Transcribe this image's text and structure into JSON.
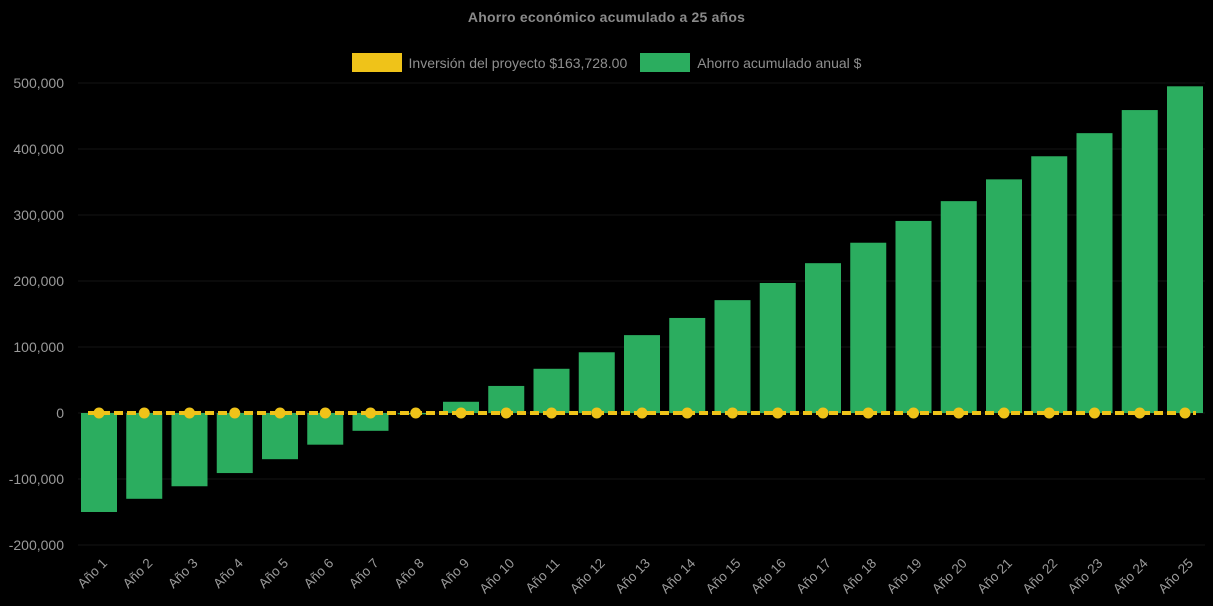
{
  "page": {
    "background": "#000000"
  },
  "chart_data": {
    "type": "bar",
    "title": "Ahorro económico acumulado a 25 años",
    "categories": [
      "Año 1",
      "Año 2",
      "Año 3",
      "Año 4",
      "Año 5",
      "Año 6",
      "Año 7",
      "Año 8",
      "Año 9",
      "Año 10",
      "Año 11",
      "Año 12",
      "Año 13",
      "Año 14",
      "Año 15",
      "Año 16",
      "Año 17",
      "Año 18",
      "Año 19",
      "Año 20",
      "Año 21",
      "Año 22",
      "Año 23",
      "Año 24",
      "Año 25"
    ],
    "series": [
      {
        "name": "Inversión del proyecto $163,728.00",
        "type": "line",
        "line_style": "dashed",
        "marker": "circle",
        "color": "#EFC319",
        "values": [
          0,
          0,
          0,
          0,
          0,
          0,
          0,
          0,
          0,
          0,
          0,
          0,
          0,
          0,
          0,
          0,
          0,
          0,
          0,
          0,
          0,
          0,
          0,
          0,
          0
        ]
      },
      {
        "name": "Ahorro acumulado anual $",
        "type": "bar",
        "color": "#2BAD5F",
        "values": [
          -150000,
          -130000,
          -111000,
          -91000,
          -70000,
          -48000,
          -27000,
          -2000,
          17000,
          41000,
          67000,
          92000,
          118000,
          144000,
          171000,
          197000,
          227000,
          258000,
          291000,
          321000,
          354000,
          389000,
          424000,
          459000,
          495000
        ]
      }
    ],
    "xlabel": "",
    "ylabel": "",
    "ylim": [
      -200000,
      500000
    ],
    "yticks": [
      500000,
      400000,
      300000,
      200000,
      100000,
      0,
      -100000,
      -200000
    ],
    "ytick_labels": [
      "500,000",
      "400,000",
      "300,000",
      "200,000",
      "100,000",
      "0",
      "-100,000",
      "-200,000"
    ],
    "xtick_rotation_deg": 45,
    "grid": false,
    "legend_position": "top",
    "axis_text_color": "#9a9a9a",
    "title_color": "#8a8a8a",
    "background": "#000000"
  }
}
